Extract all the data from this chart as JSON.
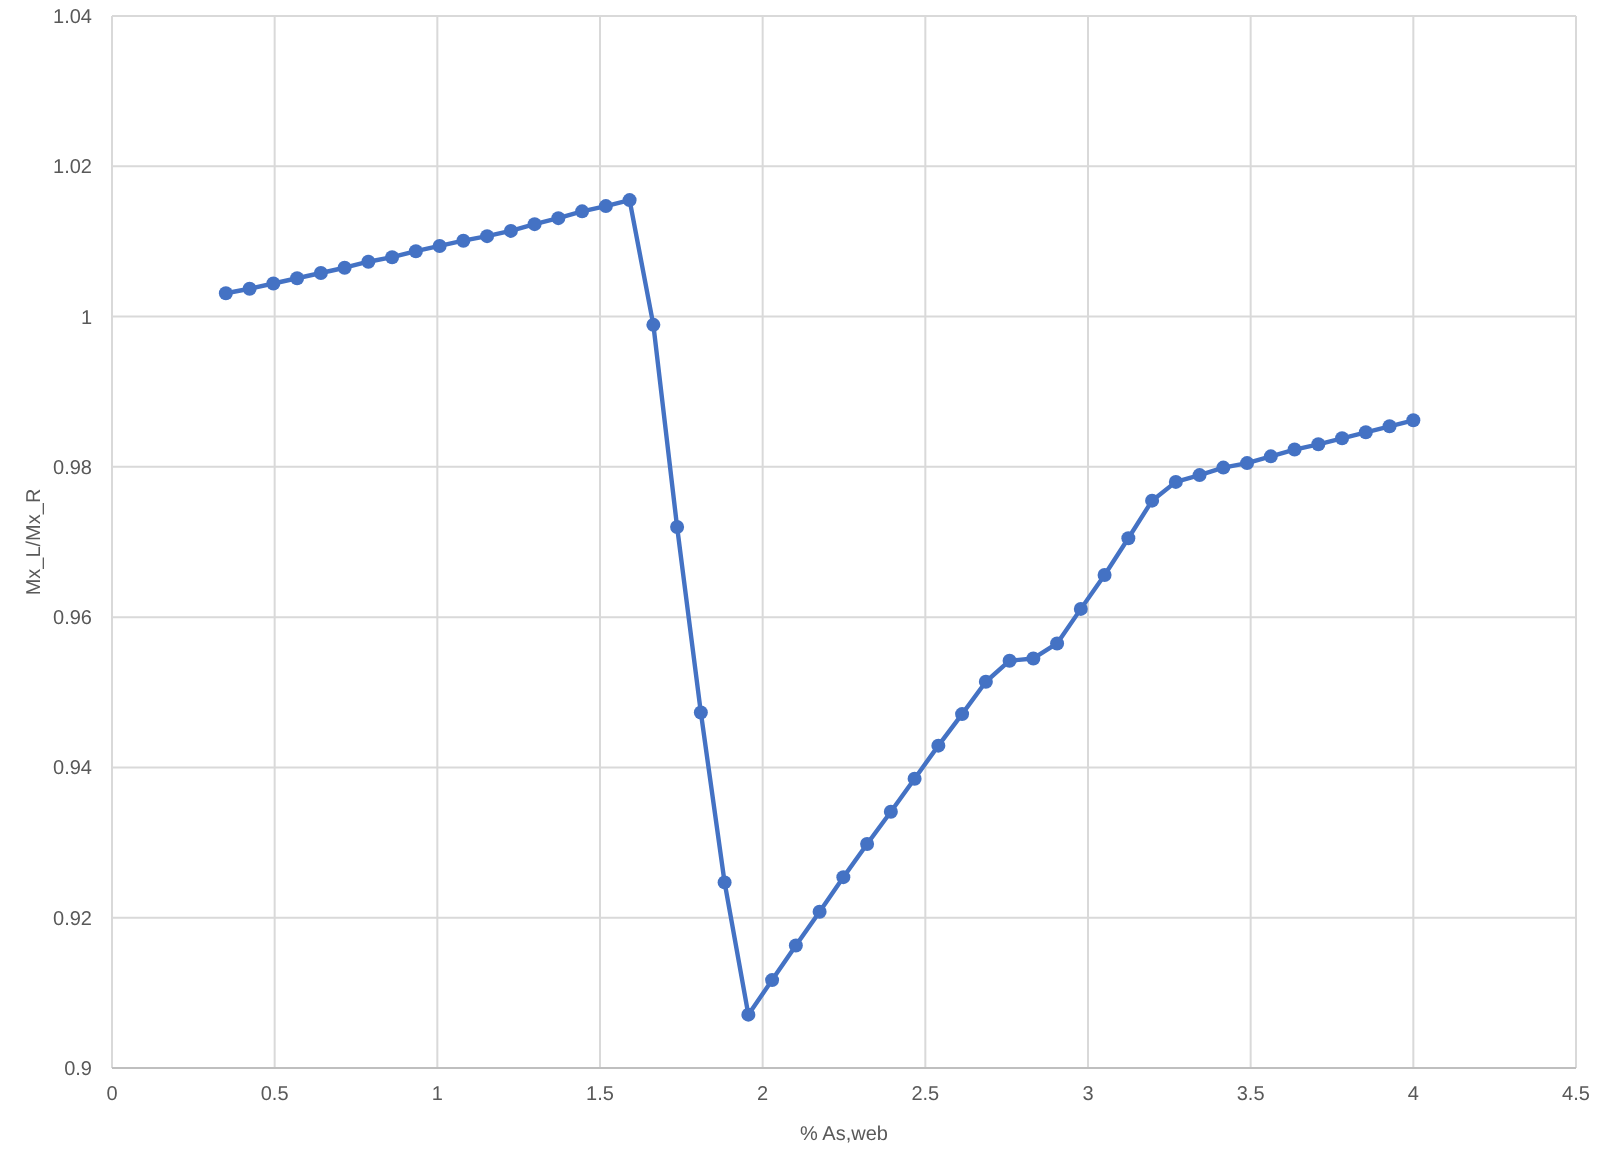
{
  "chart_data": {
    "type": "line",
    "xlabel": "% As,web",
    "ylabel": "Mx_L/Mx_R",
    "x": [
      0.35,
      0.423,
      0.496,
      0.569,
      0.642,
      0.715,
      0.788,
      0.861,
      0.934,
      1.007,
      1.08,
      1.153,
      1.226,
      1.299,
      1.372,
      1.445,
      1.518,
      1.591,
      1.664,
      1.737,
      1.81,
      1.883,
      1.956,
      2.029,
      2.102,
      2.175,
      2.248,
      2.321,
      2.394,
      2.467,
      2.54,
      2.613,
      2.686,
      2.759,
      2.832,
      2.905,
      2.978,
      3.051,
      3.124,
      3.197,
      3.27,
      3.343,
      3.416,
      3.489,
      3.562,
      3.635,
      3.708,
      3.781,
      3.854,
      3.927,
      4.0
    ],
    "series": [
      {
        "color": "#4472c4",
        "values": [
          1.0031,
          1.0037,
          1.0044,
          1.0051,
          1.0058,
          1.0065,
          1.0073,
          1.0079,
          1.0087,
          1.0094,
          1.0101,
          1.0107,
          1.0114,
          1.0123,
          1.0131,
          1.014,
          1.0147,
          1.0155,
          0.9989,
          0.972,
          0.9473,
          0.9247,
          0.9071,
          0.9117,
          0.9163,
          0.9208,
          0.9254,
          0.9298,
          0.9341,
          0.9385,
          0.9429,
          0.9471,
          0.9514,
          0.9542,
          0.9545,
          0.9565,
          0.9611,
          0.9656,
          0.9705,
          0.9755,
          0.978,
          0.9789,
          0.9799,
          0.9805,
          0.9814,
          0.9823,
          0.983,
          0.9838,
          0.9846,
          0.9854,
          0.9862
        ]
      }
    ],
    "xlim": [
      0,
      4.5
    ],
    "xticks": [
      0,
      0.5,
      1,
      1.5,
      2,
      2.5,
      3,
      3.5,
      4,
      4.5
    ],
    "ylim": [
      0.9,
      1.04
    ],
    "yticks": [
      0.9,
      0.92,
      0.94,
      0.96,
      0.98,
      1,
      1.02,
      1.04
    ],
    "grid": true,
    "marker": "circle",
    "line_style": "solid"
  }
}
